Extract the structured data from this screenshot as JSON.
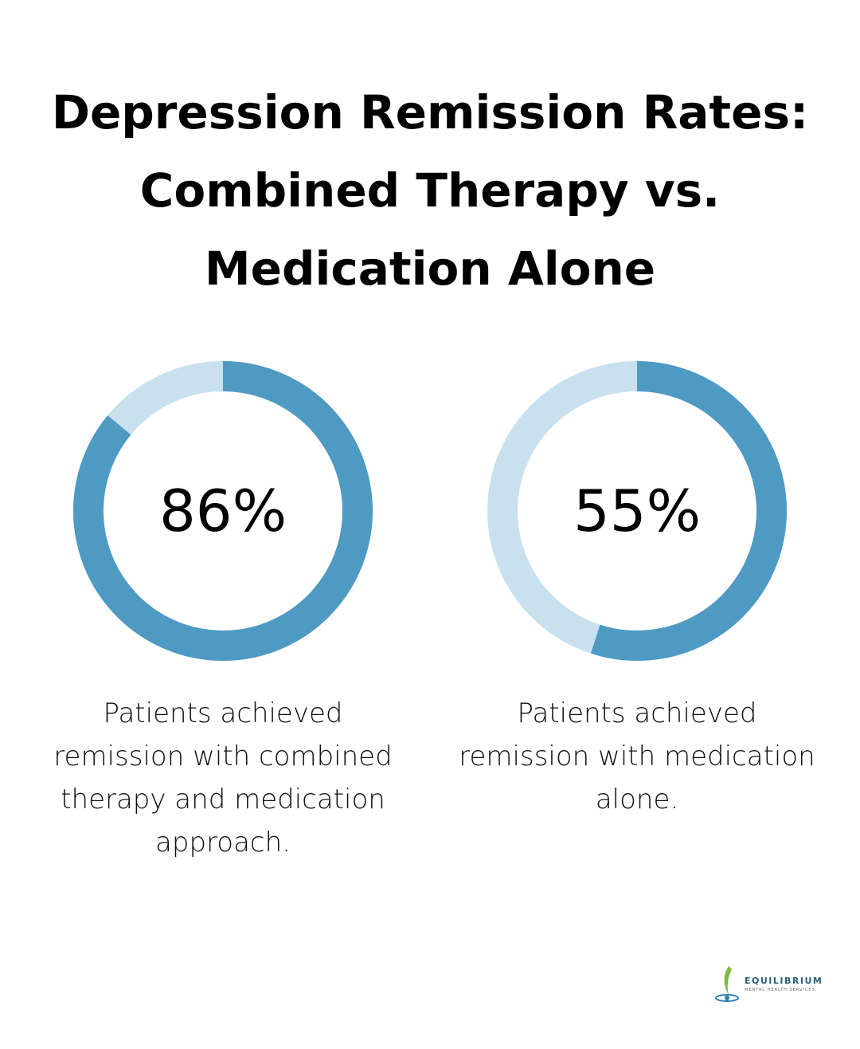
{
  "title": "Depression Remission Rates: Combined Therapy vs. Medication Alone",
  "chart_data": [
    {
      "type": "donut",
      "values": [
        86
      ],
      "value_labels": [
        "86%"
      ],
      "caption": "Patients achieved remission with combined therapy and medication approach.",
      "color": "#4e9ac3",
      "track_color": "#c9e1ee"
    },
    {
      "type": "donut",
      "values": [
        55
      ],
      "value_labels": [
        "55%"
      ],
      "caption": "Patients achieved remission with medication alone.",
      "color": "#4e9ac3",
      "track_color": "#c9e1ee"
    }
  ],
  "logo": {
    "name": "EQUILIBRIUM",
    "tagline": "MENTAL HEALTH SERVICES"
  }
}
